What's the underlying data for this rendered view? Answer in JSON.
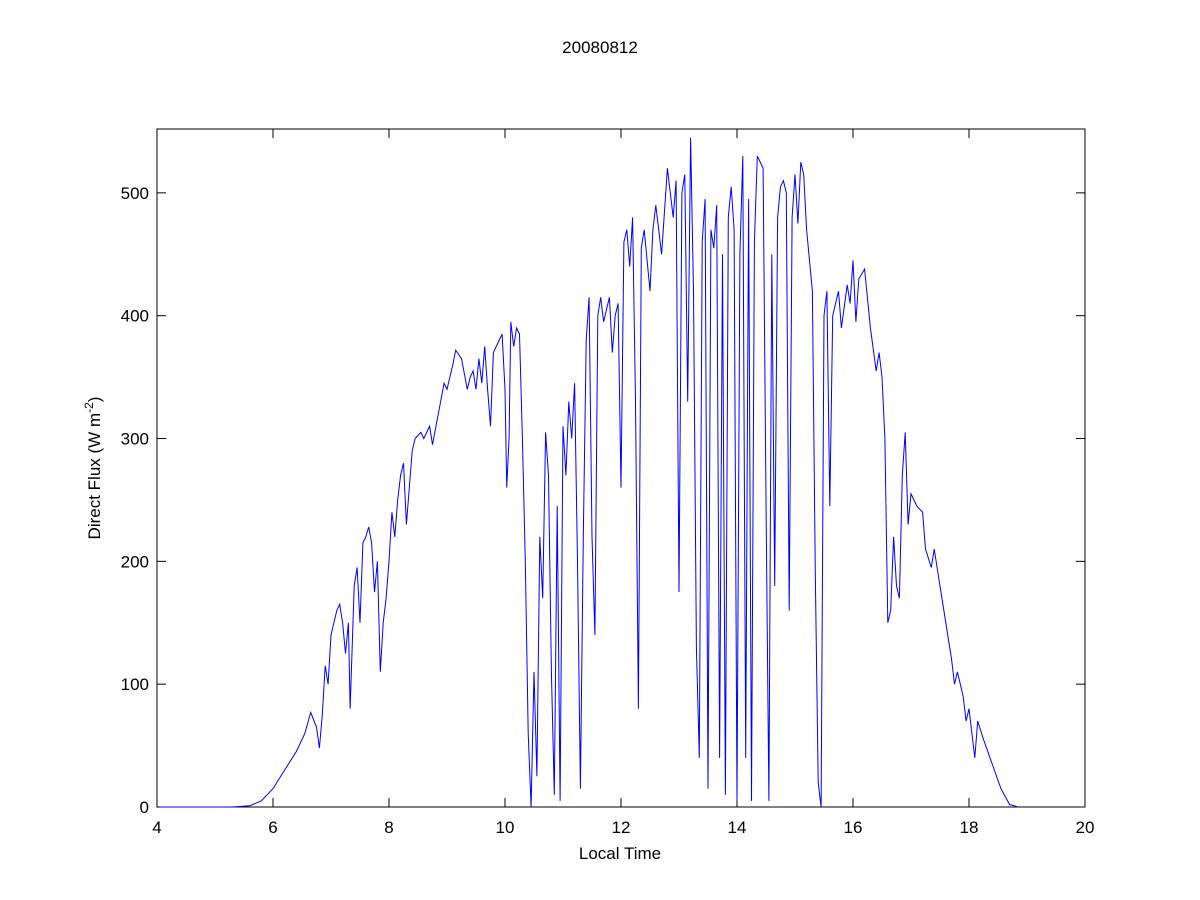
{
  "chart_data": {
    "type": "line",
    "title": "20080812",
    "xlabel": "Local Time",
    "ylabel": "Direct Flux (W m",
    "ylabel_sup": "-2",
    "ylabel_end": ")",
    "xlim": [
      4,
      20
    ],
    "xticks": [
      4,
      6,
      8,
      10,
      12,
      14,
      16,
      18,
      20
    ],
    "ylim": [
      0,
      552
    ],
    "yticks": [
      0,
      100,
      200,
      300,
      400,
      500
    ],
    "series": [
      {
        "color": "#0000ff",
        "x": [
          4.05,
          5.3,
          5.6,
          5.8,
          6.0,
          6.2,
          6.4,
          6.55,
          6.65,
          6.75,
          6.8,
          6.85,
          6.9,
          6.95,
          7.0,
          7.1,
          7.15,
          7.2,
          7.25,
          7.3,
          7.33,
          7.4,
          7.45,
          7.5,
          7.55,
          7.6,
          7.65,
          7.7,
          7.75,
          7.8,
          7.85,
          7.9,
          7.95,
          8.0,
          8.05,
          8.1,
          8.15,
          8.2,
          8.25,
          8.3,
          8.35,
          8.4,
          8.45,
          8.55,
          8.6,
          8.7,
          8.75,
          8.85,
          8.95,
          9.0,
          9.1,
          9.15,
          9.25,
          9.35,
          9.4,
          9.45,
          9.5,
          9.55,
          9.6,
          9.65,
          9.7,
          9.75,
          9.8,
          9.9,
          9.95,
          10.0,
          10.03,
          10.07,
          10.1,
          10.15,
          10.2,
          10.25,
          10.3,
          10.35,
          10.4,
          10.45,
          10.5,
          10.55,
          10.6,
          10.65,
          10.7,
          10.75,
          10.8,
          10.85,
          10.9,
          10.95,
          11.0,
          11.05,
          11.1,
          11.15,
          11.2,
          11.25,
          11.3,
          11.35,
          11.4,
          11.45,
          11.5,
          11.55,
          11.6,
          11.65,
          11.7,
          11.8,
          11.85,
          11.9,
          11.95,
          12.0,
          12.05,
          12.1,
          12.15,
          12.2,
          12.25,
          12.3,
          12.35,
          12.4,
          12.5,
          12.55,
          12.6,
          12.7,
          12.8,
          12.9,
          12.95,
          13.0,
          13.05,
          13.1,
          13.15,
          13.2,
          13.25,
          13.3,
          13.35,
          13.4,
          13.45,
          13.5,
          13.55,
          13.6,
          13.65,
          13.7,
          13.75,
          13.8,
          13.85,
          13.9,
          13.95,
          14.0,
          14.05,
          14.1,
          14.15,
          14.2,
          14.25,
          14.3,
          14.35,
          14.45,
          14.5,
          14.55,
          14.6,
          14.65,
          14.7,
          14.75,
          14.8,
          14.85,
          14.9,
          14.95,
          15.0,
          15.05,
          15.1,
          15.15,
          15.2,
          15.3,
          15.35,
          15.4,
          15.45,
          15.5,
          15.55,
          15.6,
          15.65,
          15.7,
          15.75,
          15.8,
          15.9,
          15.95,
          16.0,
          16.05,
          16.1,
          16.2,
          16.3,
          16.4,
          16.45,
          16.5,
          16.55,
          16.6,
          16.65,
          16.7,
          16.75,
          16.8,
          16.85,
          16.9,
          16.95,
          17.0,
          17.1,
          17.2,
          17.25,
          17.35,
          17.4,
          17.5,
          17.6,
          17.7,
          17.75,
          17.8,
          17.9,
          17.95,
          18.0,
          18.05,
          18.1,
          18.15,
          18.25,
          18.4,
          18.55,
          18.7,
          18.85
        ],
        "values": [
          0,
          0,
          1,
          5,
          15,
          30,
          45,
          60,
          77,
          65,
          48,
          75,
          115,
          100,
          140,
          160,
          165,
          150,
          125,
          150,
          80,
          180,
          195,
          150,
          215,
          220,
          228,
          215,
          175,
          200,
          110,
          150,
          170,
          200,
          240,
          220,
          250,
          270,
          280,
          230,
          260,
          290,
          300,
          305,
          300,
          310,
          295,
          320,
          345,
          340,
          360,
          372,
          365,
          340,
          350,
          355,
          340,
          365,
          345,
          375,
          340,
          310,
          370,
          380,
          385,
          340,
          260,
          300,
          395,
          375,
          390,
          385,
          300,
          200,
          60,
          0,
          110,
          25,
          220,
          170,
          305,
          270,
          110,
          10,
          245,
          5,
          310,
          270,
          330,
          300,
          345,
          200,
          15,
          220,
          380,
          415,
          220,
          140,
          400,
          415,
          395,
          415,
          370,
          400,
          410,
          260,
          460,
          470,
          440,
          480,
          330,
          80,
          455,
          470,
          420,
          470,
          490,
          450,
          520,
          480,
          510,
          175,
          500,
          515,
          330,
          545,
          420,
          130,
          40,
          460,
          495,
          15,
          470,
          455,
          490,
          40,
          450,
          10,
          480,
          505,
          470,
          5,
          450,
          530,
          40,
          495,
          5,
          460,
          530,
          520,
          250,
          5,
          450,
          180,
          480,
          505,
          510,
          500,
          160,
          480,
          515,
          475,
          525,
          515,
          470,
          420,
          190,
          20,
          0,
          400,
          420,
          245,
          400,
          410,
          420,
          390,
          425,
          410,
          445,
          395,
          430,
          438,
          390,
          355,
          370,
          350,
          300,
          150,
          160,
          220,
          180,
          170,
          270,
          305,
          230,
          255,
          245,
          240,
          210,
          195,
          210,
          180,
          150,
          120,
          100,
          110,
          90,
          70,
          80,
          60,
          40,
          70,
          55,
          35,
          15,
          2,
          0
        ]
      }
    ]
  }
}
